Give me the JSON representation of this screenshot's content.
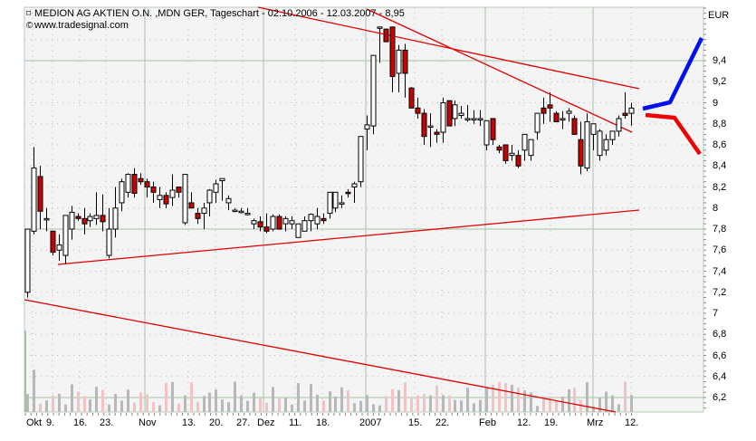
{
  "header": {
    "title_icon": "chart-symbol-icon",
    "title": "MEDION AG AKTIEN O.N. ,MDN GER, Tageschart - 02.10.2006 - 12.03.2007 - 8,95",
    "copyright_icon": "copyright-icon",
    "source": "www.tradesignal.com"
  },
  "currency": "EUR",
  "colors": {
    "background": "#f4f4f4",
    "major_grid": "#b4ccb4",
    "minor_grid": "#b8b8b8",
    "trendline": "#e00000",
    "bear_candle": "#cc0000",
    "bull_candle": "#ffffff",
    "forecast_up": "#0010f0",
    "forecast_down": "#f00000",
    "volume_up": "#b8b8b8",
    "volume_down": "#f0c4c4"
  },
  "chart_data": {
    "type": "candlestick",
    "title": "MEDION AG AKTIEN O.N. ,MDN GER, Tageschart - 02.10.2006 - 12.03.2007 - 8,95",
    "subtitle": "www.tradesignal.com",
    "xlabel": "",
    "ylabel": "EUR",
    "ylim": [
      6.1,
      10.05
    ],
    "y_ticks": [
      "9,4",
      "9,2",
      "9",
      "8,8",
      "8,6",
      "8,4",
      "8,2",
      "8",
      "7,8",
      "7,6",
      "7,4",
      "7,2",
      "7",
      "6,8",
      "6,6",
      "6,4",
      "6,2"
    ],
    "x_ticks": [
      "Okt",
      "9.",
      "16.",
      "23.",
      "Nov",
      "13.",
      "20.",
      "27.",
      "Dez",
      "11.",
      "18.",
      "2007",
      "15.",
      "22.",
      "Feb",
      "12.",
      "19.",
      "Mrz",
      "12."
    ],
    "grid": true,
    "last_close": 8.95,
    "candles_ohlc": [
      [
        7.2,
        7.8,
        7.15,
        7.8
      ],
      [
        7.78,
        8.58,
        7.75,
        8.38
      ],
      [
        8.3,
        8.4,
        7.8,
        7.97
      ],
      [
        7.9,
        8.0,
        7.78,
        7.9
      ],
      [
        7.78,
        7.78,
        7.55,
        7.58
      ],
      [
        7.6,
        7.75,
        7.5,
        7.65
      ],
      [
        7.55,
        7.92,
        7.47,
        7.93
      ],
      [
        7.8,
        8.02,
        7.7,
        7.96
      ],
      [
        7.92,
        7.95,
        7.88,
        7.9
      ],
      [
        7.9,
        8.0,
        7.75,
        7.85
      ],
      [
        7.88,
        7.95,
        7.82,
        7.92
      ],
      [
        7.9,
        8.15,
        7.84,
        7.93
      ],
      [
        7.93,
        8.13,
        7.78,
        7.87
      ],
      [
        7.55,
        8.0,
        7.52,
        7.8
      ],
      [
        7.8,
        8.2,
        7.72,
        8.0
      ],
      [
        8.05,
        8.28,
        7.97,
        8.25
      ],
      [
        8.15,
        8.33,
        8.1,
        8.32
      ],
      [
        8.32,
        8.38,
        8.1,
        8.14
      ],
      [
        8.28,
        8.33,
        8.22,
        8.25
      ],
      [
        8.25,
        8.28,
        8.1,
        8.2
      ],
      [
        8.2,
        8.25,
        8.05,
        8.15
      ],
      [
        8.08,
        8.2,
        8.0,
        8.12
      ],
      [
        8.12,
        8.15,
        8.0,
        8.04
      ],
      [
        8.1,
        8.32,
        8.02,
        8.17
      ],
      [
        8.2,
        8.1,
        8.1,
        8.15
      ],
      [
        7.86,
        8.32,
        7.84,
        8.32
      ],
      [
        8.05,
        8.15,
        8.0,
        8.0
      ],
      [
        7.95,
        8.0,
        7.85,
        7.9
      ],
      [
        7.95,
        8.05,
        7.8,
        8.0
      ],
      [
        8.05,
        8.18,
        7.92,
        8.17
      ],
      [
        8.15,
        8.27,
        8.05,
        8.23
      ],
      [
        8.26,
        8.26,
        8.07,
        8.28
      ],
      [
        8.05,
        8.12,
        7.98,
        8.09
      ],
      [
        7.98,
        8.0,
        7.96,
        7.98
      ],
      [
        7.97,
        8.0,
        7.95,
        7.97
      ],
      [
        7.95,
        8.0,
        7.93,
        7.95
      ],
      [
        7.85,
        7.9,
        7.8,
        7.88
      ],
      [
        7.87,
        7.92,
        7.78,
        7.82
      ],
      [
        7.82,
        7.95,
        7.76,
        7.78
      ],
      [
        7.8,
        7.94,
        7.78,
        7.92
      ],
      [
        7.92,
        7.94,
        7.82,
        7.8
      ],
      [
        7.85,
        7.92,
        7.78,
        7.9
      ],
      [
        7.85,
        7.92,
        7.8,
        7.88
      ],
      [
        7.72,
        7.85,
        7.74,
        7.85
      ],
      [
        7.78,
        7.92,
        7.8,
        7.88
      ],
      [
        7.88,
        7.95,
        7.78,
        7.94
      ],
      [
        7.85,
        8.0,
        7.8,
        7.92
      ],
      [
        7.9,
        7.95,
        7.85,
        7.88
      ],
      [
        7.95,
        8.15,
        7.9,
        8.15
      ],
      [
        8.0,
        8.14,
        7.96,
        8.15
      ],
      [
        8.05,
        8.12,
        8.0,
        8.05
      ],
      [
        8.15,
        8.18,
        8.1,
        8.14
      ],
      [
        8.2,
        8.25,
        8.05,
        8.23
      ],
      [
        8.25,
        8.68,
        8.2,
        8.68
      ],
      [
        8.75,
        8.88,
        8.55,
        8.79
      ],
      [
        8.78,
        9.45,
        8.7,
        9.45
      ],
      [
        9.72,
        9.72,
        9.38,
        9.72
      ],
      [
        9.7,
        9.69,
        9.6,
        9.58
      ],
      [
        9.72,
        9.72,
        9.1,
        9.25
      ],
      [
        9.28,
        9.55,
        9.1,
        9.5
      ],
      [
        9.5,
        9.56,
        9.05,
        9.28
      ],
      [
        9.14,
        9.15,
        8.95,
        8.95
      ],
      [
        8.95,
        9.05,
        8.85,
        8.9
      ],
      [
        8.9,
        8.94,
        8.6,
        8.68
      ],
      [
        8.78,
        8.9,
        8.58,
        8.78
      ],
      [
        8.72,
        8.75,
        8.62,
        8.7
      ],
      [
        8.72,
        9.05,
        8.62,
        9.0
      ],
      [
        9.02,
        9.02,
        8.92,
        8.78
      ],
      [
        8.85,
        9.02,
        8.78,
        8.98
      ],
      [
        8.88,
        8.97,
        8.85,
        8.9
      ],
      [
        8.85,
        8.98,
        8.82,
        8.85
      ],
      [
        8.85,
        8.93,
        8.8,
        8.85
      ],
      [
        8.85,
        8.93,
        8.78,
        8.85
      ],
      [
        8.6,
        8.82,
        8.55,
        8.83
      ],
      [
        8.85,
        8.85,
        8.6,
        8.65
      ],
      [
        8.58,
        8.6,
        8.52,
        8.55
      ],
      [
        8.6,
        8.6,
        8.42,
        8.45
      ],
      [
        8.5,
        8.6,
        8.45,
        8.52
      ],
      [
        8.5,
        8.55,
        8.38,
        8.4
      ],
      [
        8.55,
        8.7,
        8.45,
        8.7
      ],
      [
        8.5,
        8.63,
        8.45,
        8.65
      ],
      [
        8.72,
        8.9,
        8.65,
        8.9
      ],
      [
        8.95,
        9.05,
        8.8,
        8.9
      ],
      [
        8.98,
        9.1,
        8.82,
        8.95
      ],
      [
        8.9,
        8.92,
        8.86,
        8.82
      ],
      [
        8.85,
        8.92,
        8.75,
        8.85
      ],
      [
        8.9,
        8.95,
        8.82,
        8.92
      ],
      [
        8.85,
        8.88,
        8.7,
        8.7
      ],
      [
        8.65,
        8.82,
        8.32,
        8.4
      ],
      [
        8.38,
        8.9,
        8.35,
        8.82
      ],
      [
        8.7,
        8.8,
        8.55,
        8.8
      ],
      [
        8.5,
        8.75,
        8.45,
        8.73
      ],
      [
        8.55,
        8.7,
        8.5,
        8.65
      ],
      [
        8.65,
        8.7,
        8.6,
        8.73
      ],
      [
        8.73,
        8.88,
        8.68,
        8.85
      ],
      [
        8.9,
        9.1,
        8.85,
        8.88
      ],
      [
        8.9,
        9.0,
        8.78,
        8.95
      ]
    ],
    "trendlines": [
      {
        "name": "upper-channel",
        "from": [
          "12.12.2006",
          10.05
        ],
        "to": [
          "09.03.2007",
          9.15
        ]
      },
      {
        "name": "middle-channel",
        "from": [
          "28.12.2006",
          9.95
        ],
        "to": [
          "07.03.2007",
          8.75
        ]
      },
      {
        "name": "support",
        "from": [
          "06.10.2006",
          7.45
        ],
        "to": [
          "09.03.2007",
          7.98
        ]
      },
      {
        "name": "lower-channel",
        "from": [
          "02.10.2006",
          7.15
        ],
        "to": [
          "07.03.2007",
          6.15
        ]
      }
    ],
    "forecast_paths": [
      {
        "name": "bullish",
        "color": "#0010f0",
        "points": [
          [
            0,
            8.95
          ],
          [
            1,
            9.02
          ],
          [
            2,
            9.62
          ]
        ]
      },
      {
        "name": "bearish",
        "color": "#f00000",
        "points": [
          [
            0,
            8.9
          ],
          [
            1,
            8.86
          ],
          [
            2,
            8.52
          ]
        ]
      }
    ]
  }
}
